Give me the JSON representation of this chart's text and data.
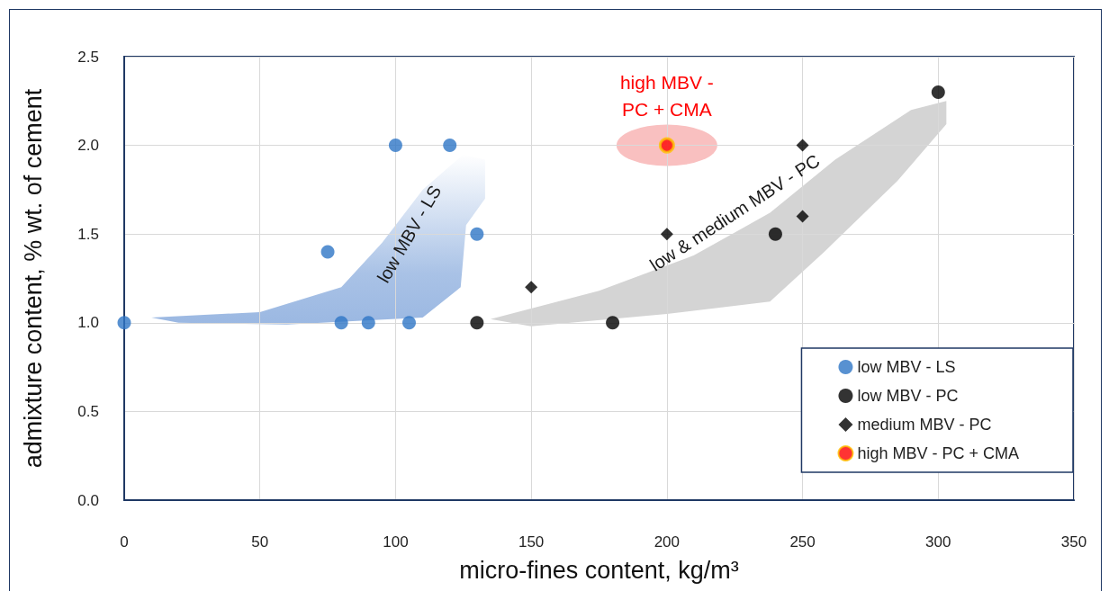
{
  "chart_data": {
    "type": "scatter",
    "xlabel": "micro-fines content, kg/m³",
    "ylabel": "admixture content, % wt. of cement",
    "xlim": [
      0,
      350
    ],
    "xticks": [
      0,
      50,
      100,
      150,
      200,
      250,
      300,
      350
    ],
    "ylim": [
      0,
      2.5
    ],
    "yticks": [
      {
        "value": 0,
        "label": "0.0"
      },
      0.5,
      {
        "value": 1,
        "label": "1.0"
      },
      1.5,
      {
        "value": 2,
        "label": "2.0"
      },
      2.5
    ],
    "grid": true,
    "legend": "bottom right",
    "series": [
      {
        "name": "low MBV - LS",
        "color": "#2e75c6",
        "marker": "circle",
        "x": [
          0,
          75,
          80,
          90,
          100,
          105,
          120,
          130
        ],
        "values": [
          1.0,
          1.4,
          1.0,
          1.0,
          2.0,
          1.0,
          2.0,
          1.5
        ]
      },
      {
        "name": "low MBV - PC",
        "color": "#000000",
        "marker": "circle",
        "x": [
          130,
          180,
          240,
          300
        ],
        "values": [
          1.0,
          1.0,
          1.5,
          2.3
        ]
      },
      {
        "name": "medium MBV - PC",
        "color": "#000000",
        "marker": "diamond",
        "x": [
          150,
          200,
          250,
          250
        ],
        "values": [
          1.2,
          1.5,
          2.0,
          1.6
        ]
      },
      {
        "name": "high MBV - PC + CMA",
        "color": "#ff0000",
        "marker": "circle",
        "x": [
          200
        ],
        "values": [
          2.0
        ]
      }
    ],
    "annotations": [
      "low MBV - LS",
      "low & medium MBV - PC",
      "high MBV -\nPC + CMA"
    ]
  }
}
